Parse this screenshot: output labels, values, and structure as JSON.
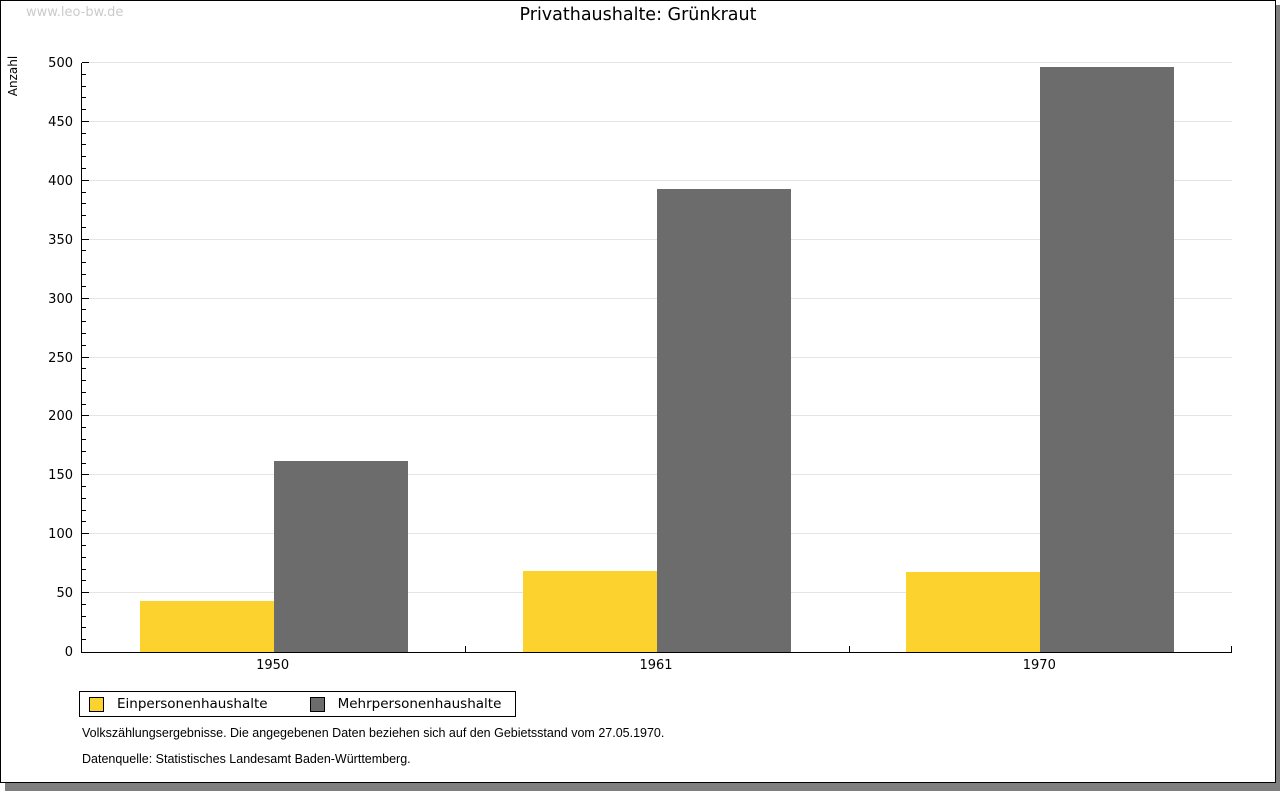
{
  "watermark": "www.leo-bw.de",
  "chart_data": {
    "type": "bar",
    "title": "Privathaushalte: Grünkraut",
    "ylabel": "Anzahl",
    "xlabel": "",
    "categories": [
      "1950",
      "1961",
      "1970"
    ],
    "series": [
      {
        "name": "Einpersonenhaushalte",
        "color": "#FCD32E",
        "values": [
          43,
          69,
          68
        ]
      },
      {
        "name": "Mehrpersonenhaushalte",
        "color": "#6C6C6C",
        "values": [
          162,
          393,
          497
        ]
      }
    ],
    "ylim": [
      0,
      500
    ],
    "ytick_major": 50,
    "ytick_minor": 10,
    "grid": true,
    "legend_position": "bottom-left"
  },
  "notes": [
    "Volkszählungsergebnisse. Die angegebenen Daten beziehen sich auf den Gebietsstand vom 27.05.1970.",
    "Datenquelle: Statistisches Landesamt Baden-Württemberg."
  ],
  "colors": {
    "grid": "#E4E4E4",
    "axis": "#000000",
    "watermark": "#CBCBCB",
    "shadow": "#7F7F7F",
    "page_border": "#000000"
  }
}
